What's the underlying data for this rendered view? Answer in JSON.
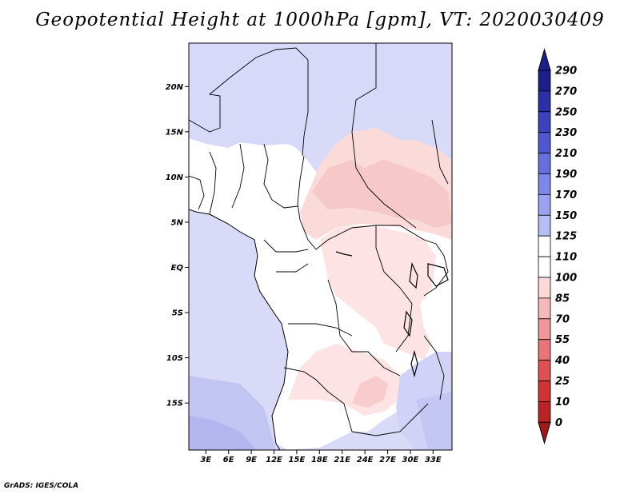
{
  "title": "Geopotential Height at 1000hPa [gpm], VT: 2020030409",
  "credit": "GrADS: IGES/COLA",
  "map": {
    "lat_ticks": [
      {
        "value": 20,
        "label": "20N"
      },
      {
        "value": 15,
        "label": "15N"
      },
      {
        "value": 10,
        "label": "10N"
      },
      {
        "value": 5,
        "label": "5N"
      },
      {
        "value": 0,
        "label": "EQ"
      },
      {
        "value": -5,
        "label": "5S"
      },
      {
        "value": -10,
        "label": "10S"
      },
      {
        "value": -15,
        "label": "15S"
      }
    ],
    "lon_ticks": [
      {
        "value": 3,
        "label": "3E"
      },
      {
        "value": 6,
        "label": "6E"
      },
      {
        "value": 9,
        "label": "9E"
      },
      {
        "value": 12,
        "label": "12E"
      },
      {
        "value": 15,
        "label": "15E"
      },
      {
        "value": 18,
        "label": "18E"
      },
      {
        "value": 21,
        "label": "21E"
      },
      {
        "value": 24,
        "label": "24E"
      },
      {
        "value": 27,
        "label": "27E"
      },
      {
        "value": 30,
        "label": "30E"
      },
      {
        "value": 33,
        "label": "33E"
      }
    ]
  },
  "colorbar": {
    "levels": [
      {
        "label": "290",
        "color": "#1a1f8a"
      },
      {
        "label": "270",
        "color": "#2a31a6"
      },
      {
        "label": "250",
        "color": "#3a43bd"
      },
      {
        "label": "230",
        "color": "#4d57cf"
      },
      {
        "label": "210",
        "color": "#6470dc"
      },
      {
        "label": "190",
        "color": "#7c89e6"
      },
      {
        "label": "170",
        "color": "#9aa3ee"
      },
      {
        "label": "150",
        "color": "#b7bef4"
      },
      {
        "label": "125",
        "color": "#d6d9f9"
      },
      {
        "label": "110",
        "color": "#ffffff"
      },
      {
        "label": "100",
        "color": "#fbd9d9"
      },
      {
        "label": "85",
        "color": "#f5b9b9"
      },
      {
        "label": "70",
        "color": "#ee9797"
      },
      {
        "label": "55",
        "color": "#e87575"
      },
      {
        "label": "40",
        "color": "#df5151"
      },
      {
        "label": "25",
        "color": "#cf3333"
      },
      {
        "label": "10",
        "color": "#b82424"
      },
      {
        "label": "0",
        "color": "#a31818"
      }
    ],
    "top_arrow_color": "#1a1f8a",
    "bottom_arrow_color": "#a31818"
  },
  "palette": {
    "ocean": "#d8daf7",
    "ocean_deep": "#c2c5f2",
    "ocean_deepest": "#b2b5ee",
    "land_low": "#d7d9f8",
    "land_high": "#ffffff",
    "pink_light": "#fde3e3",
    "pink_mid": "#f9d0d0"
  }
}
